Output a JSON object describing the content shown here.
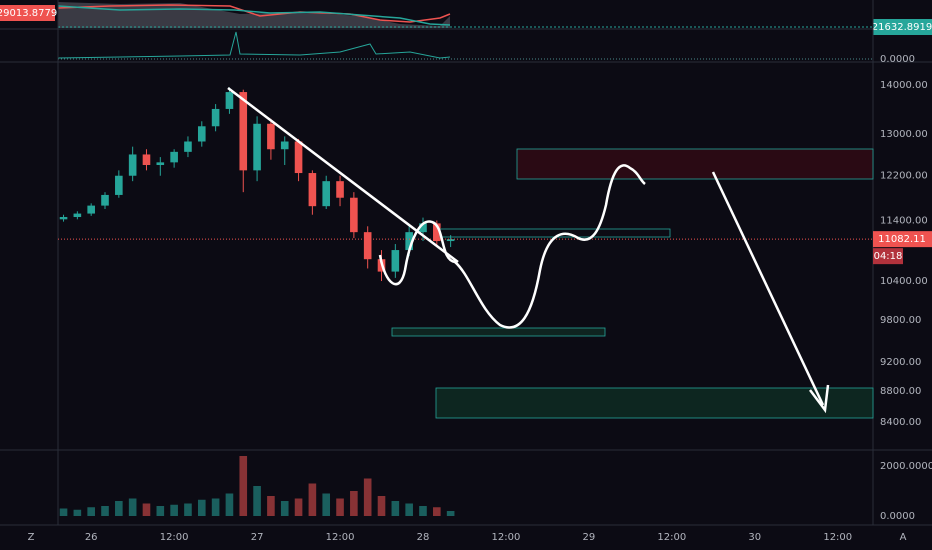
{
  "chart_data": {
    "type": "candlestick",
    "log_scale": true,
    "grid": false,
    "up_color": "#26a69a",
    "down_color": "#ef5350",
    "x": [
      -4,
      -2,
      0,
      2,
      4,
      6,
      8,
      10,
      12,
      14,
      16,
      18,
      20,
      22,
      24,
      26,
      28,
      30,
      32,
      34,
      36,
      38,
      40,
      42,
      44,
      46,
      48,
      50,
      52
    ],
    "open": [
      11420,
      11460,
      11520,
      11660,
      11850,
      12200,
      12600,
      12400,
      12450,
      12650,
      12850,
      13150,
      13500,
      13850,
      12300,
      13200,
      12700,
      12850,
      12250,
      11650,
      12100,
      11800,
      11200,
      10750,
      10550,
      10900,
      11200,
      11350,
      11050
    ],
    "high": [
      11500,
      11560,
      11700,
      11900,
      12300,
      12750,
      12700,
      12550,
      12700,
      12950,
      13250,
      13600,
      13950,
      13900,
      13350,
      13300,
      12950,
      12900,
      12300,
      12200,
      12200,
      11900,
      11300,
      10900,
      11000,
      11300,
      11450,
      11400,
      11150
    ],
    "low": [
      11380,
      11420,
      11480,
      11600,
      11800,
      12100,
      12300,
      12200,
      12350,
      12550,
      12750,
      13050,
      13400,
      11900,
      12100,
      12500,
      12400,
      12100,
      11500,
      11600,
      11650,
      11100,
      10600,
      10400,
      10450,
      10800,
      11050,
      10950,
      10950
    ],
    "close": [
      11460,
      11520,
      11660,
      11850,
      12200,
      12600,
      12400,
      12450,
      12650,
      12850,
      13150,
      13500,
      13850,
      12300,
      13200,
      12700,
      12850,
      12250,
      11650,
      12100,
      11800,
      11200,
      10750,
      10550,
      10900,
      11200,
      11350,
      11050,
      11082.11
    ],
    "volume": [
      300,
      250,
      350,
      400,
      600,
      700,
      500,
      400,
      450,
      500,
      650,
      700,
      900,
      2400,
      1200,
      800,
      600,
      700,
      1300,
      900,
      700,
      1000,
      1500,
      800,
      600,
      500,
      400,
      350,
      200
    ],
    "xlim": [
      -4.8,
      113.1
    ],
    "xticks": [
      {
        "value": 0,
        "label": "26"
      },
      {
        "value": 12,
        "label": "12:00"
      },
      {
        "value": 24,
        "label": "27"
      },
      {
        "value": 36,
        "label": "12:00"
      },
      {
        "value": 48,
        "label": "28"
      },
      {
        "value": 60,
        "label": "12:00"
      },
      {
        "value": 72,
        "label": "29"
      },
      {
        "value": 84,
        "label": "12:00"
      },
      {
        "value": 96,
        "label": "30"
      },
      {
        "value": 108,
        "label": "12:00"
      }
    ],
    "ylim": [
      8050,
      14430
    ],
    "yticks": [
      {
        "value": 8400,
        "label": "8400.00"
      },
      {
        "value": 8800,
        "label": "8800.00"
      },
      {
        "value": 9200,
        "label": "9200.00"
      },
      {
        "value": 9800,
        "label": "9800.00"
      },
      {
        "value": 10400,
        "label": "10400.00"
      },
      {
        "value": 11400,
        "label": "11400.00"
      },
      {
        "value": 12200,
        "label": "12200.00"
      },
      {
        "value": 13000,
        "label": "13000.00"
      },
      {
        "value": 14000,
        "label": "14000.00"
      }
    ],
    "volume_ylim": [
      0,
      2440
    ],
    "volume_yticks": [
      {
        "value": 0,
        "label": "0.0000"
      },
      {
        "value": 2000,
        "label": "2000.0000"
      }
    ],
    "current_price": 11082.11,
    "countdown": "04:18"
  },
  "indicators": {
    "left_badge": "29013.8779",
    "right_badge": "21632.8919",
    "lower_badge": "0.0000"
  },
  "corner_buttons": [
    "Z",
    "A"
  ]
}
